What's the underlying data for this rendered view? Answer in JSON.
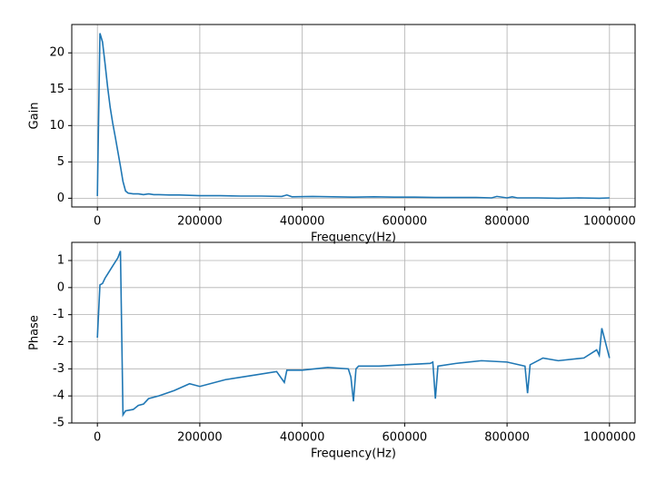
{
  "chart_data": [
    {
      "type": "line",
      "xlabel": "Frequency(Hz)",
      "ylabel": "Gain",
      "color": "#1f77b4",
      "grid": true,
      "xlim": [
        -50000,
        1050000
      ],
      "ylim": [
        -1.2,
        23.9
      ],
      "xticks": [
        0,
        200000,
        400000,
        600000,
        800000,
        1000000
      ],
      "yticks": [
        0,
        5,
        10,
        15,
        20
      ],
      "x": [
        0,
        5000,
        10000,
        15000,
        20000,
        25000,
        30000,
        35000,
        40000,
        45000,
        50000,
        55000,
        60000,
        70000,
        80000,
        90000,
        100000,
        110000,
        120000,
        140000,
        160000,
        180000,
        200000,
        240000,
        280000,
        320000,
        360000,
        370000,
        380000,
        420000,
        460000,
        500000,
        540000,
        580000,
        620000,
        660000,
        700000,
        740000,
        770000,
        780000,
        800000,
        810000,
        820000,
        860000,
        900000,
        940000,
        980000,
        1000000
      ],
      "values": [
        0.3,
        22.7,
        21.5,
        18.5,
        15.3,
        12.5,
        10.3,
        8.4,
        6.4,
        4.4,
        2.3,
        1.0,
        0.7,
        0.6,
        0.6,
        0.5,
        0.6,
        0.5,
        0.5,
        0.45,
        0.45,
        0.4,
        0.35,
        0.35,
        0.3,
        0.3,
        0.25,
        0.45,
        0.2,
        0.25,
        0.2,
        0.15,
        0.2,
        0.15,
        0.15,
        0.1,
        0.1,
        0.1,
        0.05,
        0.25,
        0.05,
        0.2,
        0.05,
        0.05,
        0.0,
        0.05,
        0.0,
        0.05
      ]
    },
    {
      "type": "line",
      "xlabel": "Frequency(Hz)",
      "ylabel": "Phase",
      "color": "#1f77b4",
      "grid": true,
      "xlim": [
        -50000,
        1050000
      ],
      "ylim": [
        -5,
        1.67
      ],
      "xticks": [
        0,
        200000,
        400000,
        600000,
        800000,
        1000000
      ],
      "yticks": [
        -5,
        -4,
        -3,
        -2,
        -1,
        0,
        1
      ],
      "x": [
        0,
        5000,
        10000,
        15000,
        20000,
        30000,
        40000,
        45000,
        50000,
        55000,
        70000,
        80000,
        90000,
        100000,
        120000,
        150000,
        180000,
        200000,
        250000,
        300000,
        350000,
        365000,
        370000,
        400000,
        450000,
        490000,
        495000,
        500000,
        505000,
        510000,
        550000,
        600000,
        650000,
        655000,
        660000,
        665000,
        700000,
        750000,
        800000,
        835000,
        840000,
        845000,
        870000,
        900000,
        950000,
        975000,
        980000,
        985000,
        1000000
      ],
      "values": [
        -1.85,
        0.1,
        0.15,
        0.35,
        0.5,
        0.8,
        1.1,
        1.35,
        -4.7,
        -4.55,
        -4.5,
        -4.35,
        -4.3,
        -4.1,
        -4.0,
        -3.8,
        -3.55,
        -3.65,
        -3.4,
        -3.25,
        -3.1,
        -3.5,
        -3.05,
        -3.05,
        -2.95,
        -3.0,
        -3.3,
        -4.2,
        -3.0,
        -2.9,
        -2.9,
        -2.85,
        -2.8,
        -2.75,
        -4.1,
        -2.9,
        -2.8,
        -2.7,
        -2.75,
        -2.9,
        -3.9,
        -2.85,
        -2.6,
        -2.7,
        -2.6,
        -2.3,
        -2.5,
        -1.5,
        -2.6
      ]
    }
  ]
}
